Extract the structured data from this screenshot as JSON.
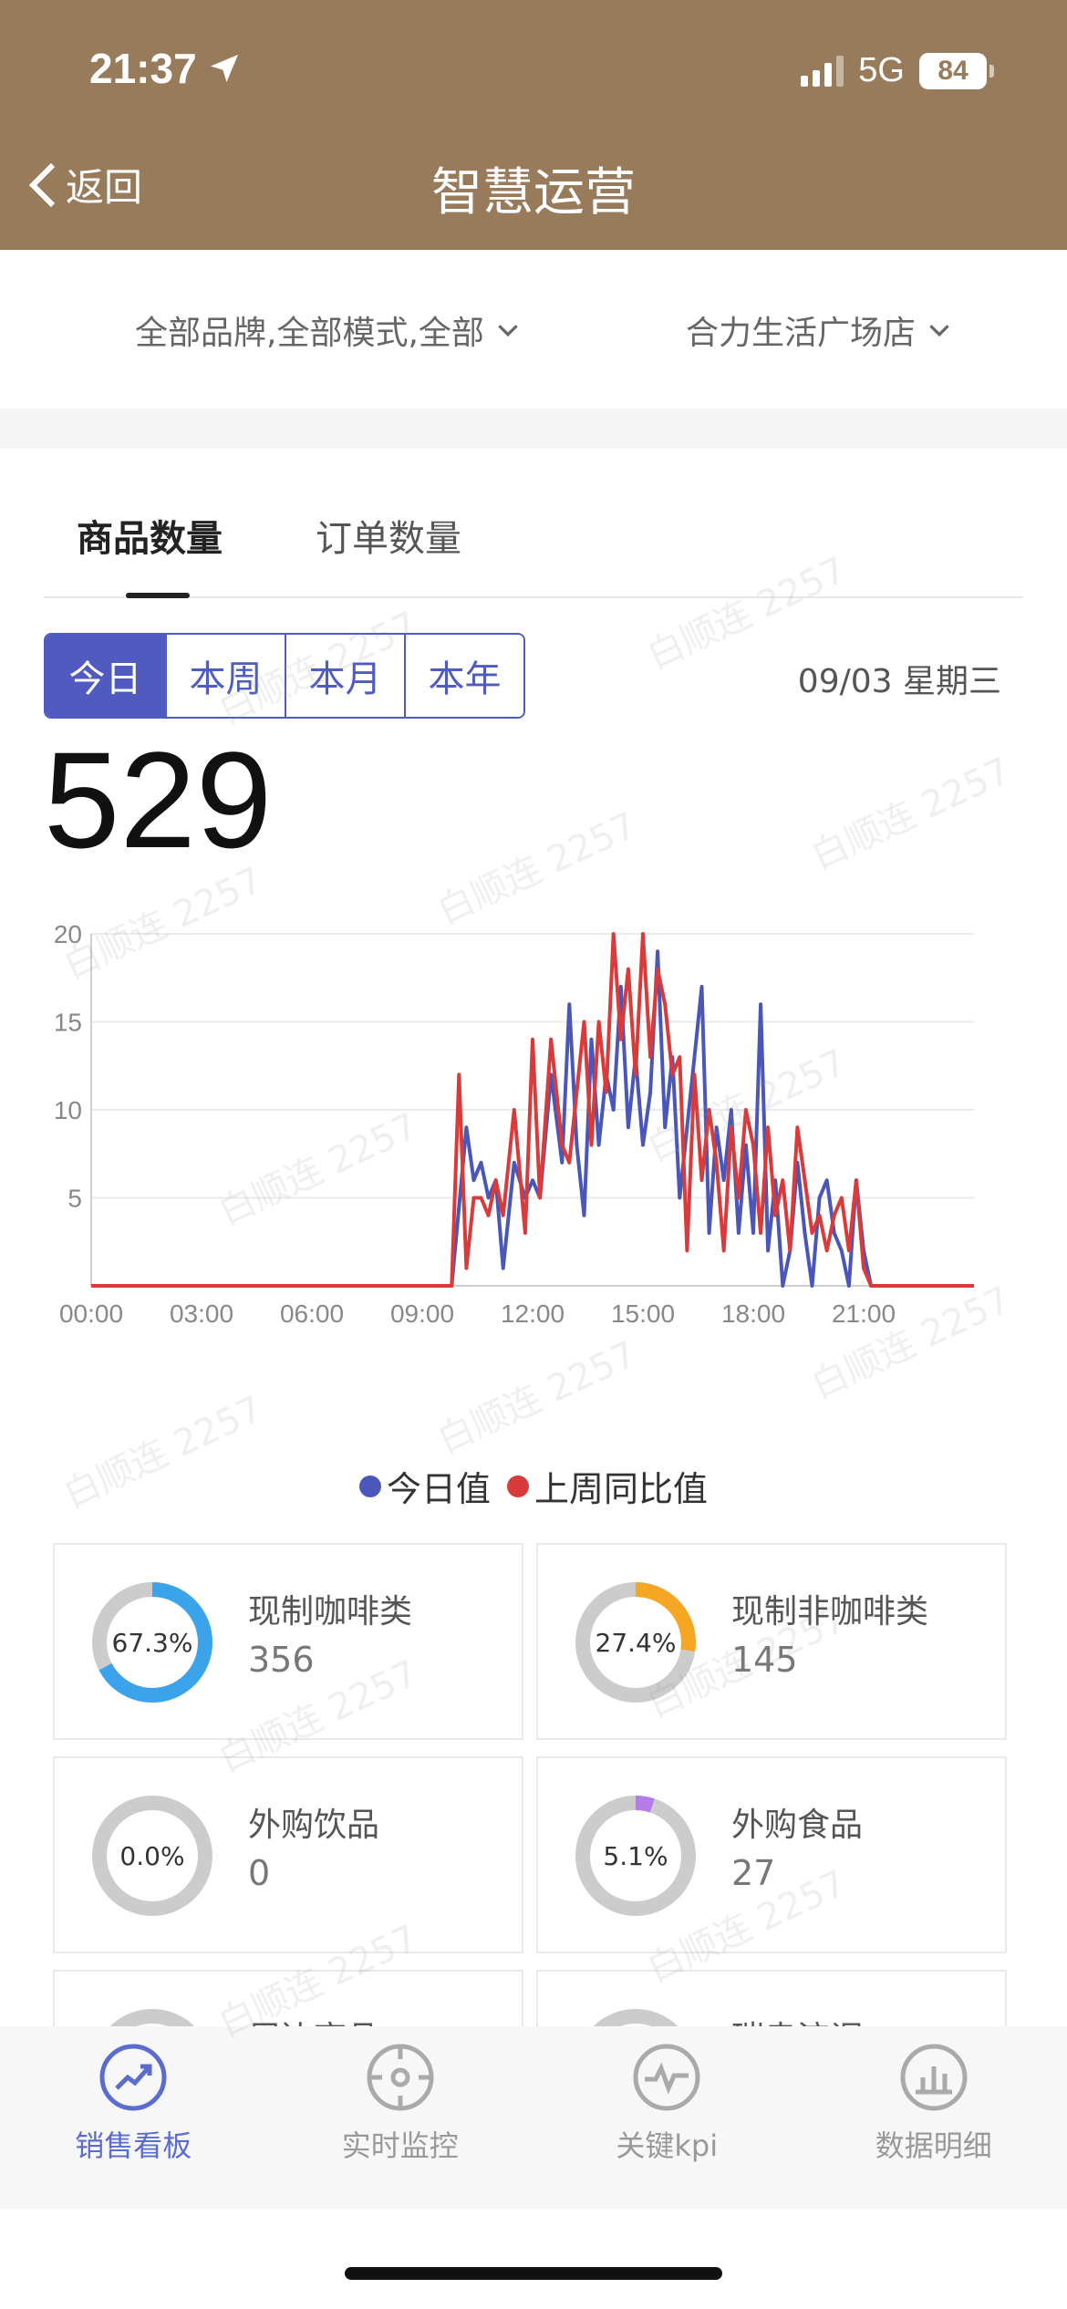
{
  "status_bar": {
    "time": "21:37",
    "network": "5G",
    "battery": "84"
  },
  "nav": {
    "back_label": "返回",
    "title": "智慧运营"
  },
  "filters": {
    "brand": "全部品牌,全部模式,全部",
    "store": "合力生活广场店"
  },
  "tabs": [
    {
      "label": "商品数量",
      "active": true
    },
    {
      "label": "订单数量",
      "active": false
    }
  ],
  "periods": [
    {
      "label": "今日",
      "active": true
    },
    {
      "label": "本周",
      "active": false
    },
    {
      "label": "本月",
      "active": false
    },
    {
      "label": "本年",
      "active": false
    }
  ],
  "date_label": "09/03 星期三",
  "total": "529",
  "chart_data": {
    "type": "line",
    "x_tick_labels": [
      "00:00",
      "03:00",
      "06:00",
      "09:00",
      "12:00",
      "15:00",
      "18:00",
      "21:00"
    ],
    "x_range_hours": [
      0,
      24
    ],
    "ylim": [
      0,
      20
    ],
    "y_ticks": [
      5,
      10,
      15,
      20
    ],
    "grid": true,
    "legend_placement": "bottom",
    "series": [
      {
        "name": "今日值",
        "color": "#4a57b8",
        "points": [
          [
            0,
            0
          ],
          [
            9.8,
            0
          ],
          [
            10.2,
            9
          ],
          [
            10.4,
            6
          ],
          [
            10.6,
            7
          ],
          [
            10.8,
            5
          ],
          [
            11,
            6
          ],
          [
            11.2,
            1
          ],
          [
            11.5,
            7
          ],
          [
            11.8,
            5
          ],
          [
            12,
            6
          ],
          [
            12.2,
            5
          ],
          [
            12.5,
            12
          ],
          [
            12.8,
            7
          ],
          [
            13,
            16
          ],
          [
            13.2,
            8
          ],
          [
            13.4,
            4
          ],
          [
            13.6,
            14
          ],
          [
            13.8,
            8
          ],
          [
            14,
            12
          ],
          [
            14.2,
            10
          ],
          [
            14.4,
            17
          ],
          [
            14.6,
            9
          ],
          [
            14.8,
            13
          ],
          [
            15,
            8
          ],
          [
            15.2,
            11
          ],
          [
            15.4,
            19
          ],
          [
            15.6,
            9
          ],
          [
            15.8,
            13
          ],
          [
            16,
            5
          ],
          [
            16.2,
            9
          ],
          [
            16.4,
            13
          ],
          [
            16.6,
            17
          ],
          [
            16.8,
            3
          ],
          [
            17,
            9
          ],
          [
            17.2,
            6
          ],
          [
            17.4,
            10
          ],
          [
            17.6,
            3
          ],
          [
            17.8,
            8
          ],
          [
            18,
            3
          ],
          [
            18.2,
            16
          ],
          [
            18.4,
            2
          ],
          [
            18.6,
            6
          ],
          [
            18.8,
            0
          ],
          [
            19,
            2
          ],
          [
            19.2,
            7
          ],
          [
            19.4,
            3
          ],
          [
            19.6,
            0
          ],
          [
            19.8,
            5
          ],
          [
            20,
            6
          ],
          [
            20.2,
            3
          ],
          [
            20.4,
            2
          ],
          [
            20.6,
            0
          ],
          [
            20.8,
            6
          ],
          [
            21,
            2
          ],
          [
            21.2,
            0
          ],
          [
            24,
            0
          ]
        ]
      },
      {
        "name": "上周同比值",
        "color": "#d93a3a",
        "points": [
          [
            0,
            0
          ],
          [
            9.8,
            0
          ],
          [
            10,
            12
          ],
          [
            10.2,
            1
          ],
          [
            10.4,
            5
          ],
          [
            10.6,
            5
          ],
          [
            10.8,
            4
          ],
          [
            11,
            6
          ],
          [
            11.2,
            4
          ],
          [
            11.5,
            10
          ],
          [
            11.8,
            3
          ],
          [
            12,
            14
          ],
          [
            12.2,
            5
          ],
          [
            12.5,
            14
          ],
          [
            12.8,
            8
          ],
          [
            13,
            7
          ],
          [
            13.2,
            11
          ],
          [
            13.4,
            15
          ],
          [
            13.6,
            8
          ],
          [
            13.8,
            15
          ],
          [
            14,
            11
          ],
          [
            14.2,
            20
          ],
          [
            14.4,
            14
          ],
          [
            14.6,
            18
          ],
          [
            14.8,
            12
          ],
          [
            15,
            20
          ],
          [
            15.2,
            13
          ],
          [
            15.4,
            18
          ],
          [
            15.6,
            16
          ],
          [
            15.8,
            12
          ],
          [
            16,
            13
          ],
          [
            16.2,
            2
          ],
          [
            16.4,
            12
          ],
          [
            16.6,
            6
          ],
          [
            16.8,
            10
          ],
          [
            17,
            7
          ],
          [
            17.2,
            2
          ],
          [
            17.4,
            9
          ],
          [
            17.6,
            5
          ],
          [
            17.8,
            10
          ],
          [
            18,
            8
          ],
          [
            18.2,
            3
          ],
          [
            18.4,
            9
          ],
          [
            18.6,
            4
          ],
          [
            18.8,
            6
          ],
          [
            19,
            2
          ],
          [
            19.2,
            9
          ],
          [
            19.4,
            6
          ],
          [
            19.6,
            3
          ],
          [
            19.8,
            4
          ],
          [
            20,
            2
          ],
          [
            20.2,
            4
          ],
          [
            20.4,
            5
          ],
          [
            20.6,
            2
          ],
          [
            20.8,
            6
          ],
          [
            21,
            1
          ],
          [
            21.2,
            0
          ],
          [
            24,
            0
          ]
        ]
      }
    ]
  },
  "categories": [
    {
      "name": "现制咖啡类",
      "value": "356",
      "percent_label": "67.3%",
      "percent": 67.3,
      "color": "#3aa3ea"
    },
    {
      "name": "现制非咖啡类",
      "value": "145",
      "percent_label": "27.4%",
      "percent": 27.4,
      "color": "#f5a623"
    },
    {
      "name": "外购饮品",
      "value": "0",
      "percent_label": "0.0%",
      "percent": 0,
      "color": "#c0c0c0"
    },
    {
      "name": "外购食品",
      "value": "27",
      "percent_label": "5.1%",
      "percent": 5.1,
      "color": "#b57be8"
    },
    {
      "name": "周边商品",
      "value": "",
      "percent_label": "",
      "percent": 0,
      "color": "#c0c0c0"
    },
    {
      "name": "瑞幸流调",
      "value": "",
      "percent_label": "",
      "percent": 0,
      "color": "#c0c0c0"
    }
  ],
  "bottom_nav": [
    {
      "label": "销售看板",
      "icon": "trend-icon",
      "active": true
    },
    {
      "label": "实时监控",
      "icon": "target-icon",
      "active": false
    },
    {
      "label": "关键kpi",
      "icon": "pulse-icon",
      "active": false
    },
    {
      "label": "数据明细",
      "icon": "bar-chart-icon",
      "active": false
    }
  ],
  "watermark": "白顺连 2257"
}
